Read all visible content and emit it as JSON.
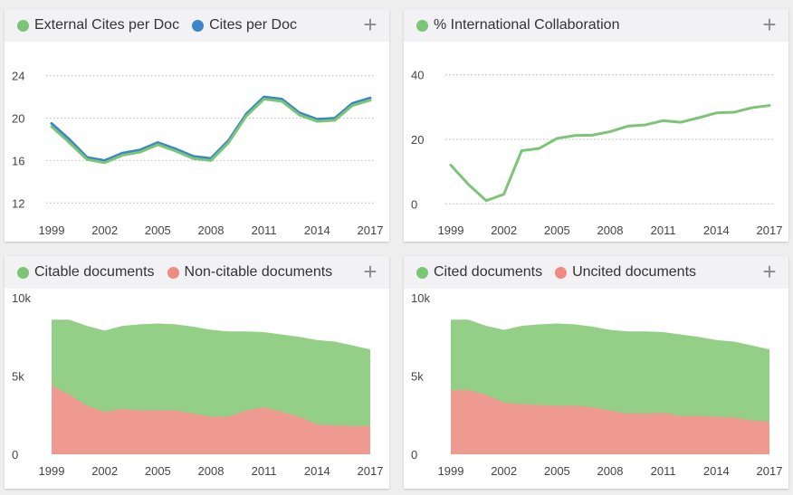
{
  "chart_data": [
    {
      "type": "line",
      "title": "",
      "legend": [
        {
          "label": "External Cites per Doc",
          "color": "#7cc576"
        },
        {
          "label": "Cites per Doc",
          "color": "#3a86c8"
        }
      ],
      "x": [
        1999,
        2000,
        2001,
        2002,
        2003,
        2004,
        2005,
        2006,
        2007,
        2008,
        2009,
        2010,
        2011,
        2012,
        2013,
        2014,
        2015,
        2016,
        2017
      ],
      "series": [
        {
          "name": "Cites per Doc",
          "color": "#3a86c8",
          "values": [
            19.5,
            18.0,
            16.3,
            16.0,
            16.7,
            17.0,
            17.7,
            17.1,
            16.4,
            16.2,
            17.9,
            20.4,
            22.0,
            21.8,
            20.5,
            19.9,
            20.0,
            21.4,
            21.9
          ]
        },
        {
          "name": "External Cites per Doc",
          "color": "#7cc576",
          "values": [
            19.2,
            17.7,
            16.1,
            15.8,
            16.5,
            16.8,
            17.5,
            16.9,
            16.2,
            16.0,
            17.7,
            20.2,
            21.8,
            21.6,
            20.3,
            19.7,
            19.8,
            21.2,
            21.7
          ]
        }
      ],
      "xticks": [
        "1999",
        "2002",
        "2005",
        "2008",
        "2011",
        "2014",
        "2017"
      ],
      "yticks": [
        "24",
        "20",
        "16",
        "12"
      ],
      "ylim": [
        11,
        25
      ],
      "plus": "+"
    },
    {
      "type": "line",
      "title": "",
      "legend": [
        {
          "label": "% International Collaboration",
          "color": "#7cc576"
        }
      ],
      "x": [
        1999,
        2000,
        2001,
        2002,
        2003,
        2004,
        2005,
        2006,
        2007,
        2008,
        2009,
        2010,
        2011,
        2012,
        2013,
        2014,
        2015,
        2016,
        2017
      ],
      "series": [
        {
          "name": "% International Collaboration",
          "color": "#7cc576",
          "values": [
            12,
            6,
            1,
            3,
            16.5,
            17.2,
            20.3,
            21.2,
            21.3,
            22.4,
            24.1,
            24.5,
            25.8,
            25.3,
            26.7,
            28.2,
            28.4,
            29.8,
            30.5
          ]
        }
      ],
      "xticks": [
        "1999",
        "2002",
        "2005",
        "2008",
        "2011",
        "2014",
        "2017"
      ],
      "yticks": [
        "40",
        "20",
        "0"
      ],
      "ylim": [
        -3,
        43
      ],
      "plus": "+"
    },
    {
      "type": "area",
      "title": "",
      "legend": [
        {
          "label": "Citable documents",
          "color": "#7cc576"
        },
        {
          "label": "Non-citable documents",
          "color": "#ef8b80"
        }
      ],
      "x": [
        1999,
        2000,
        2001,
        2002,
        2003,
        2004,
        2005,
        2006,
        2007,
        2008,
        2009,
        2010,
        2011,
        2012,
        2013,
        2014,
        2015,
        2016,
        2017
      ],
      "series": [
        {
          "name": "Citable documents",
          "color": "#93cf86",
          "values": [
            8600,
            8600,
            8200,
            7900,
            8200,
            8300,
            8350,
            8300,
            8150,
            7950,
            7850,
            7850,
            7800,
            7650,
            7500,
            7300,
            7200,
            6950,
            6700
          ]
        },
        {
          "name": "Non-citable documents",
          "color": "#ef9a90",
          "values": [
            4400,
            3800,
            3100,
            2700,
            2900,
            2800,
            2800,
            2800,
            2600,
            2400,
            2400,
            2800,
            3000,
            2700,
            2400,
            1900,
            1850,
            1800,
            1800
          ]
        }
      ],
      "xticks": [
        "1999",
        "2002",
        "2005",
        "2008",
        "2011",
        "2014",
        "2017"
      ],
      "yticks": [
        "10k",
        "5k",
        "0"
      ],
      "ylim": [
        0,
        10000
      ],
      "plus": "+"
    },
    {
      "type": "area",
      "title": "",
      "legend": [
        {
          "label": "Cited documents",
          "color": "#7cc576"
        },
        {
          "label": "Uncited documents",
          "color": "#ef8b80"
        }
      ],
      "x": [
        1999,
        2000,
        2001,
        2002,
        2003,
        2004,
        2005,
        2006,
        2007,
        2008,
        2009,
        2010,
        2011,
        2012,
        2013,
        2014,
        2015,
        2016,
        2017
      ],
      "series": [
        {
          "name": "Cited documents",
          "color": "#93cf86",
          "values": [
            8600,
            8600,
            8200,
            7950,
            8200,
            8300,
            8350,
            8300,
            8150,
            7950,
            7850,
            7850,
            7800,
            7650,
            7500,
            7300,
            7200,
            6950,
            6700
          ]
        },
        {
          "name": "Uncited documents",
          "color": "#ef9a90",
          "values": [
            4100,
            4100,
            3800,
            3300,
            3200,
            3150,
            3100,
            3100,
            3000,
            2800,
            2600,
            2600,
            2650,
            2450,
            2450,
            2400,
            2350,
            2150,
            2100
          ]
        }
      ],
      "xticks": [
        "1999",
        "2002",
        "2005",
        "2008",
        "2011",
        "2014",
        "2017"
      ],
      "yticks": [
        "10k",
        "5k",
        "0"
      ],
      "ylim": [
        0,
        10000
      ],
      "plus": "+"
    }
  ]
}
